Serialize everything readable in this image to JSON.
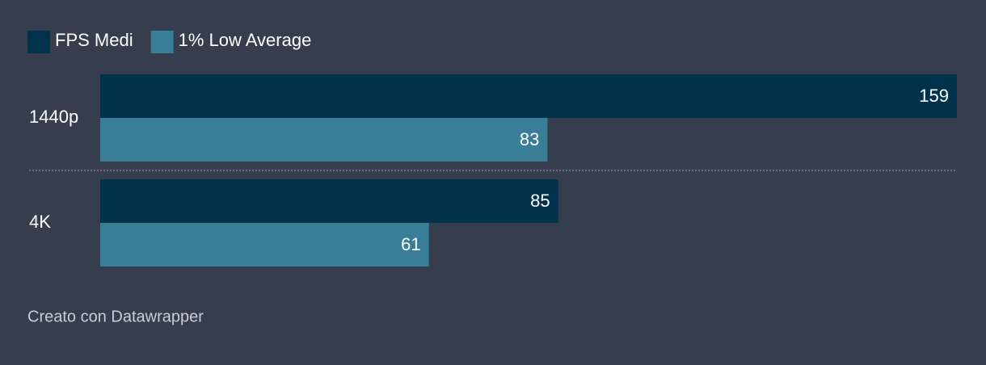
{
  "chart_data": {
    "type": "bar",
    "categories": [
      "1440p",
      "4K"
    ],
    "series": [
      {
        "name": "FPS Medi",
        "color": "#00334b",
        "values": [
          159,
          85
        ]
      },
      {
        "name": "1% Low Average",
        "color": "#3a7d96",
        "values": [
          83,
          61
        ]
      }
    ],
    "credit": "Creato con Datawrapper"
  }
}
